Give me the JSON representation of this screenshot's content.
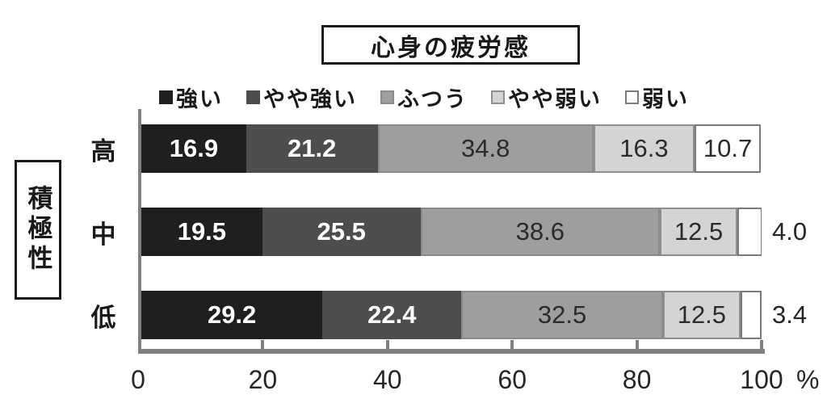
{
  "chart_data": {
    "type": "bar",
    "orientation": "horizontal",
    "stacked": true,
    "title": "心身の疲労感",
    "category_axis_title": "積極性",
    "categories": [
      "高",
      "中",
      "低"
    ],
    "series": [
      {
        "name": "強い",
        "color": "#211e1e",
        "border_color": null,
        "text_color": "#ffffff",
        "values": [
          16.9,
          19.5,
          29.2
        ]
      },
      {
        "name": "やや強い",
        "color": "#4d4d4d",
        "border_color": null,
        "text_color": "#ffffff",
        "values": [
          21.2,
          25.5,
          22.4
        ]
      },
      {
        "name": "ふつう",
        "color": "#9e9e9e",
        "border_color": "#8a8a8a",
        "text_color": "#2b2b2b",
        "values": [
          34.8,
          38.6,
          32.5
        ]
      },
      {
        "name": "やや弱い",
        "color": "#d4d4d4",
        "border_color": "#8f8f8f",
        "text_color": "#2b2b2b",
        "values": [
          16.3,
          12.5,
          12.5
        ]
      },
      {
        "name": "弱い",
        "color": "#ffffff",
        "border_color": "#7a7a7a",
        "text_color": "#2b2b2b",
        "values": [
          10.7,
          4.0,
          3.4
        ]
      }
    ],
    "x_axis": {
      "min": 0,
      "max": 100,
      "tick_values": [
        0,
        20,
        40,
        60,
        80,
        100
      ],
      "unit": "%"
    },
    "legend_position": "top",
    "value_decimals": 1,
    "axis_color": "#7f7f7f",
    "text_color": "#262626"
  }
}
